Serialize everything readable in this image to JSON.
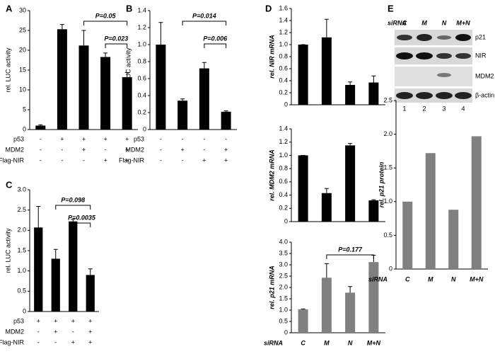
{
  "chart_data": [
    {
      "type": "bar",
      "panel": "A",
      "ylabel": "rel. LUC activity",
      "color": "#000000",
      "values": [
        1.0,
        25.3,
        21.2,
        18.3,
        13.2
      ],
      "errors": [
        0.2,
        1.2,
        3.8,
        1.0,
        1.2
      ],
      "ylim": [
        0,
        30
      ],
      "yticks": [
        0,
        5,
        10,
        15,
        20,
        25,
        30
      ],
      "conditions": [
        {
          "name": "p53",
          "values": [
            "-",
            "+",
            "+",
            "+",
            "+"
          ]
        },
        {
          "name": "MDM2",
          "values": [
            "-",
            "-",
            "+",
            "-",
            "+"
          ]
        },
        {
          "name": "Flag-NIR",
          "values": [
            "-",
            "-",
            "-",
            "+",
            "+"
          ]
        }
      ],
      "annotations": [
        "P=0.05",
        "P=0.023"
      ]
    },
    {
      "type": "bar",
      "panel": "B",
      "ylabel": "rel. LUC activity",
      "color": "#000000",
      "values": [
        1.0,
        0.34,
        0.72,
        0.21
      ],
      "errors": [
        0.26,
        0.02,
        0.07,
        0.01
      ],
      "ylim": [
        0,
        1.4
      ],
      "yticks": [
        0,
        0.2,
        0.4,
        0.6,
        0.8,
        {
          "value": 1,
          "label": "1.0"
        },
        1.2,
        1.4
      ],
      "conditions": [
        {
          "name": "p53",
          "values": [
            "-",
            "-",
            "-",
            "-"
          ]
        },
        {
          "name": "MDM2",
          "values": [
            "-",
            "+",
            "-",
            "+"
          ]
        },
        {
          "name": "Flag-NIR",
          "values": [
            "-",
            "-",
            "+",
            "+"
          ]
        }
      ],
      "annotations": [
        "P=0.014",
        "P=0.006"
      ]
    },
    {
      "type": "bar",
      "panel": "C",
      "ylabel": "rel. LUC activity",
      "color": "#000000",
      "values": [
        2.07,
        1.3,
        2.22,
        0.9
      ],
      "errors": [
        0.52,
        0.23,
        0.05,
        0.15
      ],
      "ylim": [
        0,
        3
      ],
      "yticks": [
        0,
        0.5,
        {
          "value": 1,
          "label": "1.0"
        },
        1.5,
        {
          "value": 2,
          "label": "2.0"
        },
        2.5,
        {
          "value": 3,
          "label": "3.0"
        }
      ],
      "conditions": [
        {
          "name": "p53",
          "values": [
            "+",
            "+",
            "+",
            "+"
          ]
        },
        {
          "name": "MDM2",
          "values": [
            "-",
            "+",
            "-",
            "+"
          ]
        },
        {
          "name": "Flag-NIR",
          "values": [
            "-",
            "-",
            "+",
            "+"
          ]
        }
      ],
      "annotations": [
        "P=0.098",
        "P=0.0035"
      ]
    },
    {
      "type": "bar",
      "panel": "D",
      "ylabel": "rel. NIR mRNA",
      "color": "#000000",
      "values": [
        1.0,
        1.12,
        0.33,
        0.37
      ],
      "errors": [
        0.0,
        0.3,
        0.05,
        0.11
      ],
      "ylim": [
        0,
        1.6
      ],
      "yticks": [
        0,
        0.2,
        0.4,
        0.6,
        0.8,
        {
          "value": 1,
          "label": "1.0"
        },
        1.2,
        1.4,
        1.6
      ]
    },
    {
      "type": "bar",
      "ylabel": "rel. MDM2 mRNA",
      "color": "#000000",
      "values": [
        1.0,
        0.43,
        1.15,
        0.32
      ],
      "errors": [
        0.0,
        0.07,
        0.03,
        0.01
      ],
      "ylim": [
        0,
        1.4
      ],
      "yticks": [
        0,
        0.2,
        0.4,
        0.6,
        0.8,
        {
          "value": 1,
          "label": "1.0"
        },
        1.2,
        1.4
      ]
    },
    {
      "type": "bar",
      "ylabel": "rel. p21 mRNA",
      "color": "#808080",
      "xlabel": "siRNA",
      "categories": [
        "C",
        "M",
        "N",
        "M+N"
      ],
      "values": [
        1.03,
        2.43,
        1.77,
        3.12
      ],
      "errors": [
        0.02,
        0.62,
        0.27,
        0.3
      ],
      "ylim": [
        0,
        4
      ],
      "yticks": [
        0,
        0.5,
        {
          "value": 1,
          "label": "1.0"
        },
        1.5,
        {
          "value": 2,
          "label": "2.0"
        },
        2.5,
        {
          "value": 3,
          "label": "3.0"
        },
        3.5,
        {
          "value": 4,
          "label": "4.0"
        }
      ],
      "annotations": [
        "P=0.177"
      ]
    },
    {
      "type": "bar",
      "ylabel": "rel. p21 protein",
      "color": "#808080",
      "xlabel": "siRNA",
      "categories": [
        "C",
        "M",
        "N",
        "M+N"
      ],
      "values": [
        1.0,
        1.72,
        0.88,
        1.97
      ],
      "ylim": [
        0,
        2.5
      ],
      "yticks": [
        0,
        0.5,
        {
          "value": 1,
          "label": "1.0"
        },
        1.5,
        {
          "value": 2,
          "label": "2.0"
        },
        2.5
      ]
    }
  ],
  "blot": {
    "panel": "E",
    "header": "siRNA",
    "lanes": [
      "C",
      "M",
      "N",
      "M+N"
    ],
    "bands": [
      "p21",
      "NIR",
      "MDM2",
      "β-actin"
    ],
    "lane_numbers": [
      "1",
      "2",
      "3",
      "4"
    ]
  }
}
